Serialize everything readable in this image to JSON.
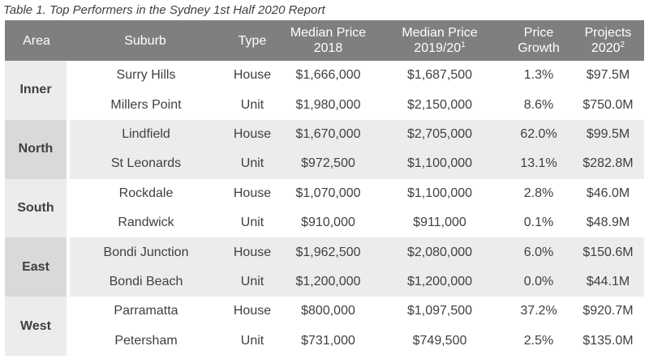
{
  "caption": "Table 1. Top Performers in the Sydney 1st Half 2020 Report",
  "headers": {
    "area": "Area",
    "suburb": "Suburb",
    "type": "Type",
    "median_2018_line1": "Median Price",
    "median_2018_line2": "2018",
    "median_2019_line1": "Median Price",
    "median_2019_line2": "2019/20",
    "median_2019_sup": "1",
    "growth_line1": "Price",
    "growth_line2": "Growth",
    "projects_line1": "Projects",
    "projects_line2": "2020",
    "projects_sup": "2"
  },
  "groups": [
    {
      "area": "Inner",
      "rows": [
        {
          "suburb": "Surry Hills",
          "type": "House",
          "median_2018": "$1,666,000",
          "median_2019": "$1,687,500",
          "growth": "1.3%",
          "projects": "$97.5M"
        },
        {
          "suburb": "Millers Point",
          "type": "Unit",
          "median_2018": "$1,980,000",
          "median_2019": "$2,150,000",
          "growth": "8.6%",
          "projects": "$750.0M"
        }
      ]
    },
    {
      "area": "North",
      "rows": [
        {
          "suburb": "Lindfield",
          "type": "House",
          "median_2018": "$1,670,000",
          "median_2019": "$2,705,000",
          "growth": "62.0%",
          "projects": "$99.5M"
        },
        {
          "suburb": "St Leonards",
          "type": "Unit",
          "median_2018": "$972,500",
          "median_2019": "$1,100,000",
          "growth": "13.1%",
          "projects": "$282.8M"
        }
      ]
    },
    {
      "area": "South",
      "rows": [
        {
          "suburb": "Rockdale",
          "type": "House",
          "median_2018": "$1,070,000",
          "median_2019": "$1,100,000",
          "growth": "2.8%",
          "projects": "$46.0M"
        },
        {
          "suburb": "Randwick",
          "type": "Unit",
          "median_2018": "$910,000",
          "median_2019": "$911,000",
          "growth": "0.1%",
          "projects": "$48.9M"
        }
      ]
    },
    {
      "area": "East",
      "rows": [
        {
          "suburb": "Bondi Junction",
          "type": "House",
          "median_2018": "$1,962,500",
          "median_2019": "$2,080,000",
          "growth": "6.0%",
          "projects": "$150.6M"
        },
        {
          "suburb": "Bondi Beach",
          "type": "Unit",
          "median_2018": "$1,200,000",
          "median_2019": "$1,200,000",
          "growth": "0.0%",
          "projects": "$44.1M"
        }
      ]
    },
    {
      "area": "West",
      "rows": [
        {
          "suburb": "Parramatta",
          "type": "House",
          "median_2018": "$800,000",
          "median_2019": "$1,097,500",
          "growth": "37.2%",
          "projects": "$920.7M"
        },
        {
          "suburb": "Petersham",
          "type": "Unit",
          "median_2018": "$731,000",
          "median_2019": "$749,500",
          "growth": "2.5%",
          "projects": "$135.0M"
        }
      ]
    }
  ]
}
